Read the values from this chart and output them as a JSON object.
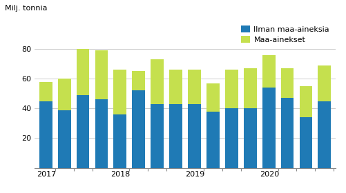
{
  "year_labels": [
    "2017",
    "2018",
    "2019",
    "2020"
  ],
  "ilman": [
    45,
    39,
    49,
    46,
    36,
    52,
    43,
    43,
    43,
    38,
    40,
    40,
    54,
    47,
    34,
    45
  ],
  "maa": [
    13,
    21,
    31,
    33,
    30,
    13,
    30,
    23,
    23,
    19,
    26,
    27,
    22,
    20,
    21,
    24
  ],
  "color_ilman": "#1f7ab5",
  "color_maa": "#c5e04e",
  "ylabel": "Milj. tonnia",
  "ylim": [
    0,
    100
  ],
  "yticks": [
    0,
    20,
    40,
    60,
    80
  ],
  "legend_ilman": "Ilman maa-aineksia",
  "legend_maa": "Maa-ainekset",
  "background_color": "#ffffff",
  "grid_color": "#cccccc",
  "bar_width": 0.7
}
